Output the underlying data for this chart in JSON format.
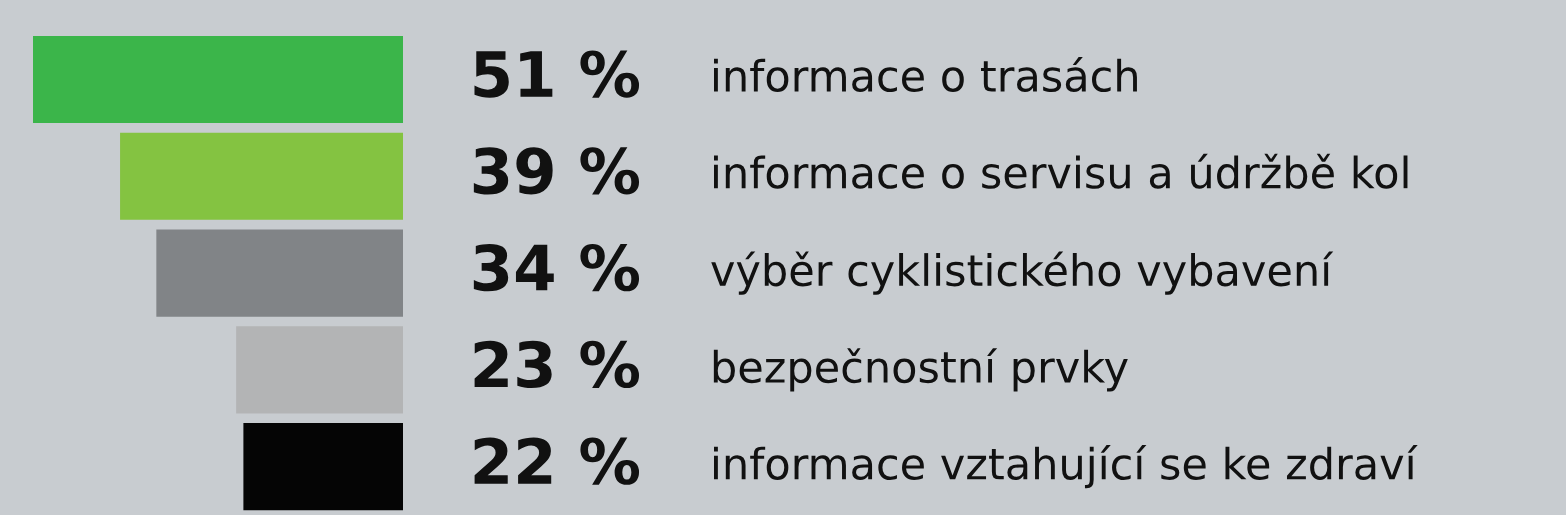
{
  "chart_data": {
    "type": "bar",
    "orientation": "horizontal",
    "categories": [
      "informace o trasách",
      "informace o servisu a údržbě kol",
      "výběr cyklistického vybavení",
      "bezpečnostní prvky",
      "informace vztahující se ke zdraví"
    ],
    "values": [
      51,
      39,
      34,
      23,
      22
    ],
    "colors": [
      "#3bb54a",
      "#84c341",
      "#818487",
      "#b3b4b5",
      "#050505"
    ],
    "value_labels": [
      "51 %",
      "39 %",
      "34 %",
      "23 %",
      "22 %"
    ]
  }
}
